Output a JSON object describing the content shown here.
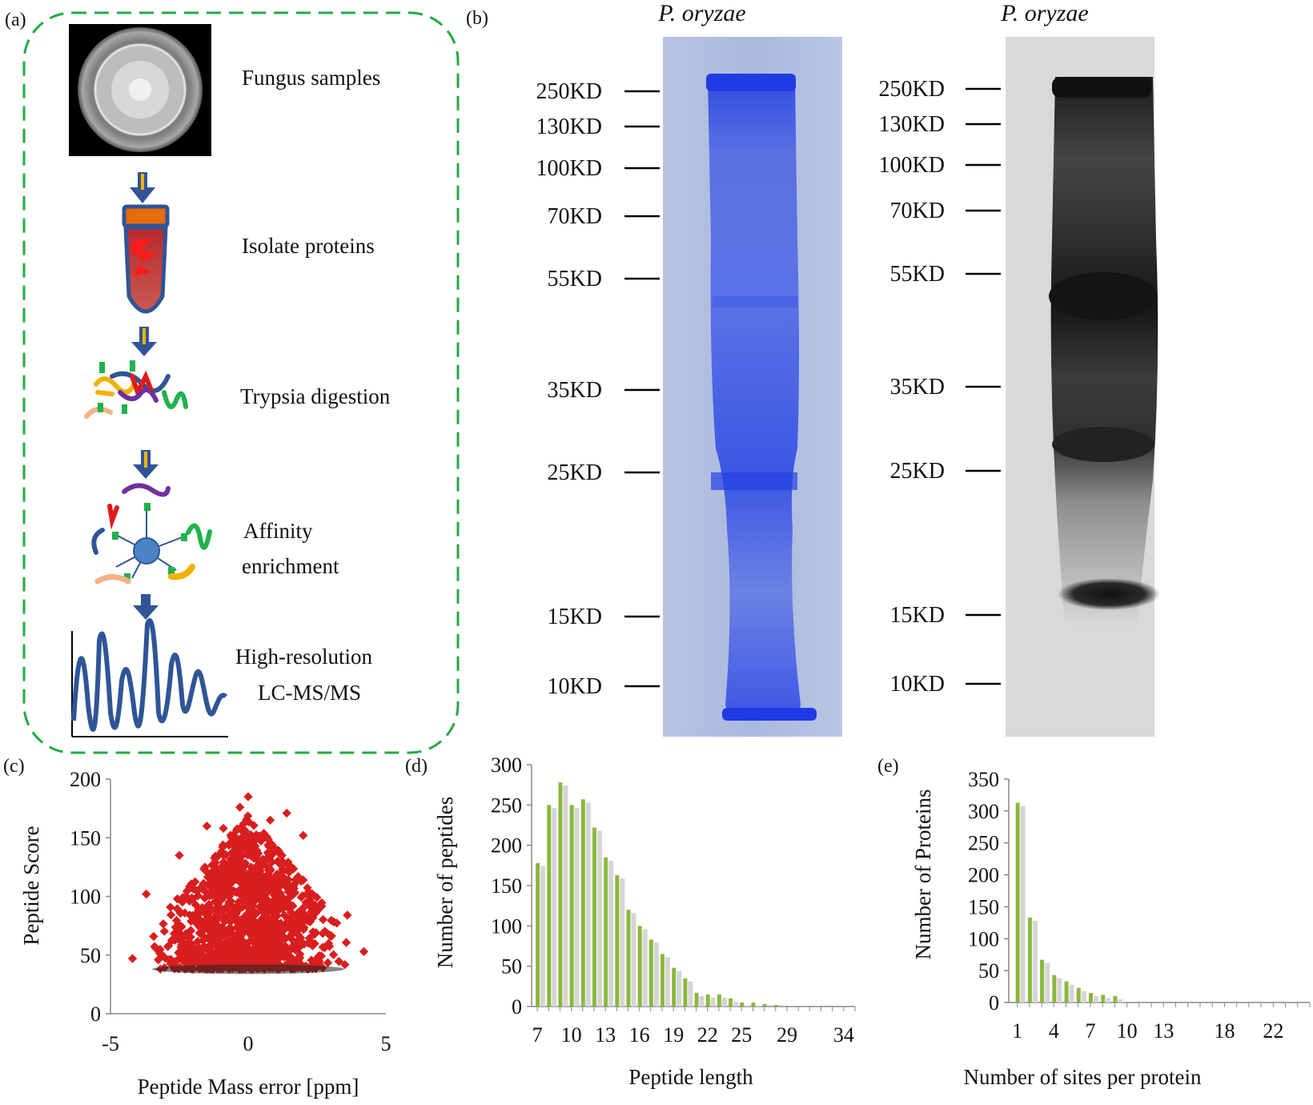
{
  "panel_a": {
    "label": "(a)",
    "steps": [
      {
        "label": "Fungus samples"
      },
      {
        "label": "Isolate proteins"
      },
      {
        "label": "Trypsia digestion"
      },
      {
        "label": "Affinity",
        "label2": "enrichment"
      },
      {
        "label": "High-resolution",
        "label2": "LC-MS/MS"
      }
    ]
  },
  "panel_b": {
    "label": "(b)",
    "left_title": "P. oryzae",
    "right_title": "P. oryzae",
    "markers": [
      "250KD",
      "130KD",
      "100KD",
      "70KD",
      "55KD",
      "35KD",
      "25KD",
      "15KD",
      "10KD"
    ]
  },
  "chart_data": [
    {
      "id": "c",
      "panel_label": "(c)",
      "type": "scatter",
      "title": "",
      "xlabel": "Peptide Mass error [ppm]",
      "ylabel": "Peptide Score",
      "xlim": [
        -5,
        5
      ],
      "ylim": [
        0,
        200
      ],
      "x_ticks": [
        -5,
        0,
        5
      ],
      "y_ticks": [
        0,
        50,
        100,
        150,
        200
      ],
      "series": [
        {
          "name": "peptides",
          "color": "#d81e1e",
          "points": [
            [
              0.0,
              185
            ],
            [
              -0.3,
              176
            ],
            [
              1.4,
              171
            ],
            [
              -3.7,
              102
            ],
            [
              -4.2,
              47
            ],
            [
              4.2,
              53
            ],
            [
              3.6,
              84
            ],
            [
              -2.5,
              135
            ],
            [
              2.0,
              152
            ],
            [
              -1.5,
              160
            ],
            [
              0.8,
              165
            ],
            [
              -0.9,
              158
            ]
          ]
        }
      ]
    },
    {
      "id": "d",
      "panel_label": "(d)",
      "type": "bar",
      "title": "",
      "xlabel": "Peptide length",
      "ylabel": "Number of peptides",
      "ylim": [
        0,
        300
      ],
      "y_ticks": [
        0,
        50,
        100,
        150,
        200,
        250,
        300
      ],
      "x_tick_labels": [
        "7",
        "10",
        "13",
        "16",
        "19",
        "22",
        "25",
        "29",
        "34"
      ],
      "categories": [
        7,
        8,
        9,
        10,
        11,
        12,
        13,
        14,
        15,
        16,
        17,
        18,
        19,
        20,
        21,
        22,
        23,
        24,
        25,
        26,
        27,
        28
      ],
      "values": [
        178,
        250,
        278,
        250,
        257,
        222,
        185,
        163,
        120,
        100,
        83,
        65,
        48,
        35,
        17,
        15,
        15,
        10,
        5,
        5,
        3,
        2
      ],
      "color": "#8ab83c"
    },
    {
      "id": "e",
      "panel_label": "(e)",
      "type": "bar",
      "title": "",
      "xlabel": "Number of sites per protein",
      "ylabel": "Number of Proteins",
      "ylim": [
        0,
        350
      ],
      "y_ticks": [
        0,
        50,
        100,
        150,
        200,
        250,
        300,
        350
      ],
      "x_tick_labels": [
        "1",
        "4",
        "7",
        "10",
        "13",
        "18",
        "22"
      ],
      "categories": [
        1,
        2,
        3,
        4,
        5,
        6,
        7,
        8,
        9
      ],
      "values": [
        313,
        133,
        67,
        43,
        33,
        23,
        15,
        12,
        10
      ],
      "color": "#8ab83c"
    }
  ]
}
